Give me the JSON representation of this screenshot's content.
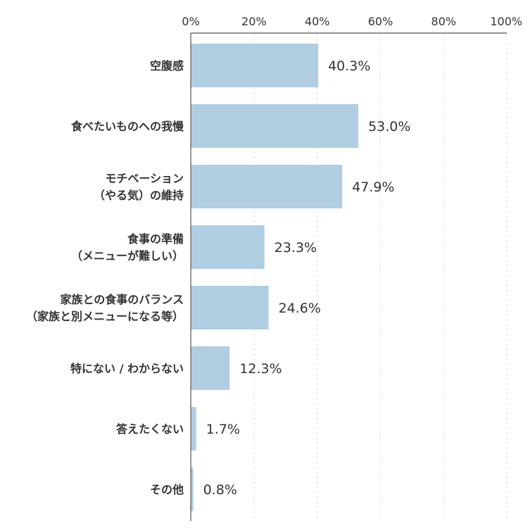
{
  "chart_data": {
    "type": "bar",
    "orientation": "horizontal",
    "categories": [
      [
        "空腹感"
      ],
      [
        "食べたいものへの我慢"
      ],
      [
        "モチベーション",
        "（やる気）の維持"
      ],
      [
        "食事の準備",
        "（メニューが難しい）"
      ],
      [
        "家族との食事のバランス",
        "（家族と別メニューになる等）"
      ],
      [
        "特にない / わからない"
      ],
      [
        "答えたくない"
      ],
      [
        "その他"
      ]
    ],
    "values": [
      40.3,
      53.0,
      47.9,
      23.3,
      24.6,
      12.3,
      1.7,
      0.8
    ],
    "value_labels": [
      "40.3%",
      "53.0%",
      "47.9%",
      "23.3%",
      "24.6%",
      "12.3%",
      "1.7%",
      "0.8%"
    ],
    "xlim": [
      0,
      100
    ],
    "ticks": [
      0,
      20,
      40,
      60,
      80,
      100
    ],
    "tick_labels": [
      "0%",
      "20%",
      "40%",
      "60%",
      "80%",
      "100%"
    ],
    "xaxis_position": "top",
    "grid": "vertical dashed",
    "bar_color": "#b0cde2",
    "axis_color": "#555555",
    "grid_color": "#dddddd",
    "text_color": "#333333"
  }
}
